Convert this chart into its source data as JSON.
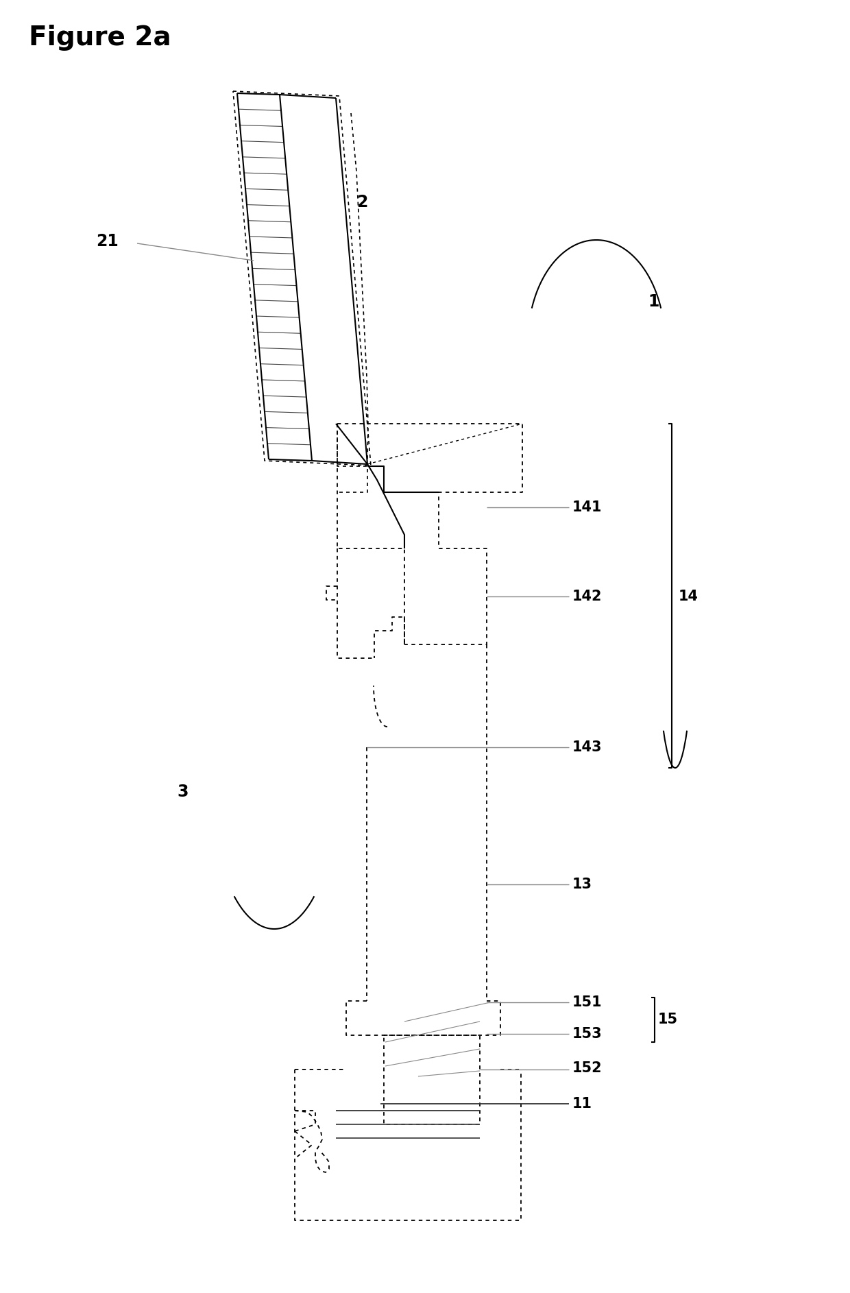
{
  "title": "Figure 2a",
  "bg_color": "#ffffff",
  "fig_width": 12.4,
  "fig_height": 18.86,
  "dpi": 100
}
